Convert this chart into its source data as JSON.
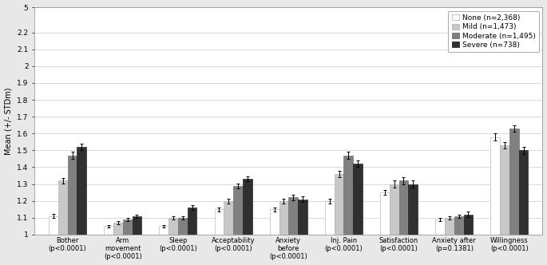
{
  "categories": [
    "Bother\n(p<0.0001)",
    "Arm\nmovement\n(p<0.0001)",
    "Sleep\n(p<0.0001)",
    "Acceptability\n(p<0.0001)",
    "Anxiety\nbefore\n(p<0.0001)",
    "Inj. Pain\n(p<0.0001)",
    "Satisfaction\n(p<0.0001)",
    "Anxiety after\n(p=0.1381)",
    "Willingness\n(p<0.0001)"
  ],
  "series": [
    {
      "label": "None (n=2,368)",
      "color": "#ffffff",
      "edgecolor": "#aaaaaa",
      "values": [
        1.11,
        1.05,
        1.05,
        1.15,
        1.15,
        1.2,
        1.25,
        1.09,
        1.58
      ],
      "errors": [
        0.012,
        0.006,
        0.006,
        0.012,
        0.012,
        0.015,
        0.015,
        0.01,
        0.02
      ]
    },
    {
      "label": "Mild (n=1,473)",
      "color": "#c8c8c8",
      "edgecolor": "#aaaaaa",
      "values": [
        1.32,
        1.07,
        1.1,
        1.2,
        1.2,
        1.36,
        1.3,
        1.1,
        1.53
      ],
      "errors": [
        0.015,
        0.01,
        0.01,
        0.015,
        0.015,
        0.02,
        0.02,
        0.01,
        0.02
      ]
    },
    {
      "label": "Moderate (n=1,495)",
      "color": "#808080",
      "edgecolor": "#606060",
      "values": [
        1.47,
        1.09,
        1.1,
        1.29,
        1.22,
        1.47,
        1.32,
        1.11,
        1.63
      ],
      "errors": [
        0.02,
        0.01,
        0.01,
        0.015,
        0.015,
        0.02,
        0.02,
        0.01,
        0.02
      ]
    },
    {
      "label": "Severe (n=738)",
      "color": "#303030",
      "edgecolor": "#101010",
      "values": [
        1.52,
        1.11,
        1.16,
        1.33,
        1.21,
        1.42,
        1.3,
        1.12,
        1.5
      ],
      "errors": [
        0.02,
        0.01,
        0.015,
        0.015,
        0.015,
        0.02,
        0.02,
        0.015,
        0.02
      ]
    }
  ],
  "ylabel": "Mean (+/- STDm)",
  "ylim_data": [
    1.0,
    2.35
  ],
  "ytick_positions": [
    1.0,
    1.1,
    1.2,
    1.3,
    1.4,
    1.5,
    1.6,
    1.7,
    1.8,
    1.9,
    2.0,
    2.1,
    2.2,
    2.35
  ],
  "ytick_labels": [
    "1",
    "1.1",
    "1.2",
    "1.3",
    "1.4",
    "1.5",
    "1.6",
    "1.7",
    "1.8",
    "1.9",
    "2",
    "2.1",
    "2.2",
    "5"
  ],
  "background_color": "#e8e8e8",
  "plot_bg_color": "#ffffff",
  "bar_width": 0.17,
  "legend_fontsize": 6.5,
  "axis_label_fontsize": 7,
  "tick_fontsize": 6.5,
  "xtick_fontsize": 6.0
}
